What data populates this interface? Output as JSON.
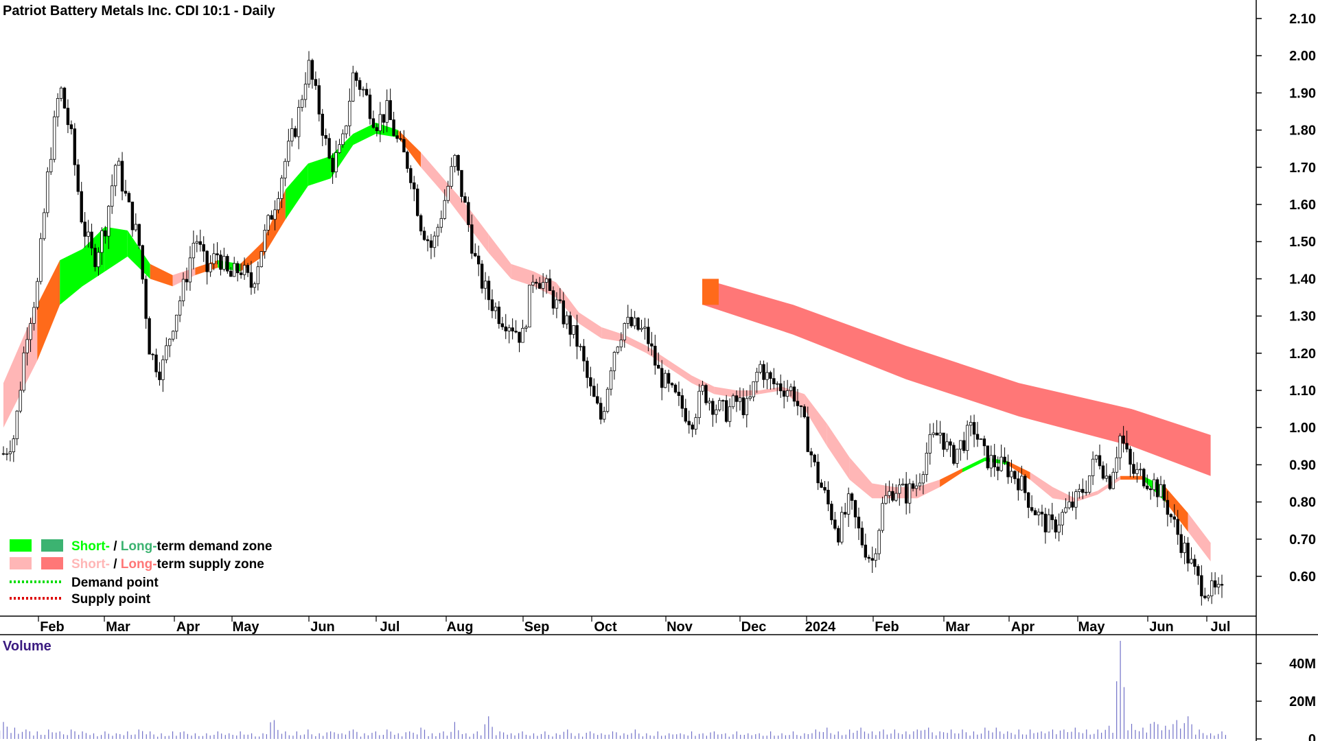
{
  "chart_data": {
    "type": "candlestick",
    "title": "Patriot Battery Metals Inc. CDI 10:1 - Daily",
    "x_labels": [
      "Feb",
      "Mar",
      "Apr",
      "May",
      "Jun",
      "Jul",
      "Aug",
      "Sep",
      "Oct",
      "Nov",
      "Dec",
      "2024",
      "Feb",
      "Mar",
      "Apr",
      "May",
      "Jun",
      "Jul"
    ],
    "y_ticks": [
      "2.10",
      "2.00",
      "1.90",
      "1.80",
      "1.70",
      "1.60",
      "1.50",
      "1.40",
      "1.30",
      "1.20",
      "1.10",
      "1.00",
      "0.90",
      "0.80",
      "0.70",
      "0.60"
    ],
    "ylim": [
      0.53,
      2.12
    ],
    "price_path": [
      [
        0,
        0.93
      ],
      [
        1,
        0.98
      ],
      [
        2,
        1.25
      ],
      [
        3,
        1.38
      ],
      [
        4,
        1.7
      ],
      [
        5,
        1.92
      ],
      [
        6,
        1.78
      ],
      [
        7,
        1.55
      ],
      [
        8,
        1.45
      ],
      [
        9,
        1.54
      ],
      [
        10,
        1.72
      ],
      [
        11,
        1.6
      ],
      [
        12,
        1.5
      ],
      [
        13,
        1.2
      ],
      [
        14,
        1.15
      ],
      [
        15,
        1.28
      ],
      [
        16,
        1.38
      ],
      [
        17,
        1.52
      ],
      [
        18,
        1.42
      ],
      [
        19,
        1.47
      ],
      [
        20,
        1.4
      ],
      [
        21,
        1.43
      ],
      [
        22,
        1.38
      ],
      [
        23,
        1.5
      ],
      [
        24,
        1.6
      ],
      [
        25,
        1.72
      ],
      [
        26,
        1.82
      ],
      [
        27,
        1.98
      ],
      [
        28,
        1.85
      ],
      [
        29,
        1.7
      ],
      [
        30,
        1.75
      ],
      [
        31,
        1.95
      ],
      [
        32,
        1.9
      ],
      [
        33,
        1.82
      ],
      [
        34,
        1.85
      ],
      [
        35,
        1.76
      ],
      [
        36,
        1.7
      ],
      [
        37,
        1.55
      ],
      [
        38,
        1.48
      ],
      [
        39,
        1.6
      ],
      [
        40,
        1.72
      ],
      [
        41,
        1.58
      ],
      [
        42,
        1.42
      ],
      [
        43,
        1.35
      ],
      [
        44,
        1.3
      ],
      [
        45,
        1.28
      ],
      [
        46,
        1.24
      ],
      [
        47,
        1.42
      ],
      [
        48,
        1.38
      ],
      [
        49,
        1.33
      ],
      [
        50,
        1.28
      ],
      [
        51,
        1.22
      ],
      [
        52,
        1.1
      ],
      [
        53,
        1.02
      ],
      [
        54,
        1.2
      ],
      [
        55,
        1.28
      ],
      [
        56,
        1.27
      ],
      [
        57,
        1.25
      ],
      [
        58,
        1.15
      ],
      [
        59,
        1.1
      ],
      [
        60,
        1.06
      ],
      [
        61,
        1.02
      ],
      [
        62,
        1.1
      ],
      [
        63,
        1.06
      ],
      [
        64,
        1.04
      ],
      [
        65,
        1.07
      ],
      [
        66,
        1.05
      ],
      [
        67,
        1.17
      ],
      [
        68,
        1.12
      ],
      [
        69,
        1.11
      ],
      [
        70,
        1.1
      ],
      [
        71,
        1.0
      ],
      [
        72,
        0.88
      ],
      [
        73,
        0.8
      ],
      [
        74,
        0.72
      ],
      [
        75,
        0.8
      ],
      [
        76,
        0.7
      ],
      [
        77,
        0.64
      ],
      [
        78,
        0.8
      ],
      [
        79,
        0.84
      ],
      [
        80,
        0.82
      ],
      [
        81,
        0.85
      ],
      [
        82,
        0.95
      ],
      [
        83,
        0.99
      ],
      [
        84,
        0.92
      ],
      [
        85,
        0.96
      ],
      [
        86,
        1.0
      ],
      [
        87,
        0.92
      ],
      [
        88,
        0.9
      ],
      [
        89,
        0.89
      ],
      [
        90,
        0.86
      ],
      [
        91,
        0.8
      ],
      [
        92,
        0.75
      ],
      [
        93,
        0.73
      ],
      [
        94,
        0.77
      ],
      [
        95,
        0.8
      ],
      [
        96,
        0.85
      ],
      [
        97,
        0.93
      ],
      [
        98,
        0.85
      ],
      [
        99,
        0.98
      ],
      [
        100,
        0.88
      ],
      [
        101,
        0.87
      ],
      [
        102,
        0.85
      ],
      [
        103,
        0.8
      ],
      [
        104,
        0.72
      ],
      [
        105,
        0.65
      ],
      [
        106,
        0.58
      ],
      [
        107,
        0.56
      ],
      [
        108,
        0.55
      ]
    ],
    "zones": {
      "short_term": [
        [
          0,
          1.0,
          1.12
        ],
        [
          3,
          1.18,
          1.33
        ],
        [
          5,
          1.33,
          1.45
        ],
        [
          7,
          1.38,
          1.48
        ],
        [
          9,
          1.42,
          1.54
        ],
        [
          11,
          1.46,
          1.53
        ],
        [
          13,
          1.4,
          1.44
        ],
        [
          15,
          1.38,
          1.41
        ],
        [
          17,
          1.41,
          1.43
        ],
        [
          19,
          1.43,
          1.45
        ],
        [
          21,
          1.42,
          1.44
        ],
        [
          23,
          1.46,
          1.5
        ],
        [
          25,
          1.56,
          1.64
        ],
        [
          27,
          1.65,
          1.71
        ],
        [
          29,
          1.67,
          1.73
        ],
        [
          31,
          1.76,
          1.79
        ],
        [
          33,
          1.79,
          1.82
        ],
        [
          35,
          1.78,
          1.8
        ],
        [
          37,
          1.7,
          1.74
        ],
        [
          39,
          1.63,
          1.67
        ],
        [
          41,
          1.55,
          1.6
        ],
        [
          43,
          1.47,
          1.52
        ],
        [
          45,
          1.4,
          1.44
        ],
        [
          47,
          1.38,
          1.42
        ],
        [
          49,
          1.35,
          1.39
        ],
        [
          51,
          1.28,
          1.31
        ],
        [
          53,
          1.24,
          1.27
        ],
        [
          55,
          1.23,
          1.25
        ],
        [
          57,
          1.2,
          1.22
        ],
        [
          59,
          1.16,
          1.18
        ],
        [
          61,
          1.12,
          1.14
        ],
        [
          63,
          1.09,
          1.11
        ],
        [
          65,
          1.08,
          1.1
        ],
        [
          67,
          1.09,
          1.1
        ],
        [
          69,
          1.1,
          1.11
        ],
        [
          71,
          1.05,
          1.09
        ],
        [
          73,
          0.95,
          1.01
        ],
        [
          75,
          0.86,
          0.92
        ],
        [
          77,
          0.81,
          0.85
        ],
        [
          79,
          0.81,
          0.84
        ],
        [
          81,
          0.81,
          0.84
        ],
        [
          83,
          0.84,
          0.86
        ],
        [
          85,
          0.88,
          0.89
        ],
        [
          87,
          0.91,
          0.92
        ],
        [
          89,
          0.9,
          0.91
        ],
        [
          91,
          0.86,
          0.88
        ],
        [
          93,
          0.81,
          0.84
        ],
        [
          95,
          0.8,
          0.81
        ],
        [
          97,
          0.82,
          0.83
        ],
        [
          99,
          0.86,
          0.87
        ],
        [
          101,
          0.86,
          0.87
        ],
        [
          103,
          0.8,
          0.84
        ],
        [
          105,
          0.72,
          0.77
        ],
        [
          107,
          0.64,
          0.69
        ]
      ],
      "short_term_kind": [
        "supply",
        "demand",
        "demand",
        "demand",
        "demand",
        "demand",
        "supply",
        "supply",
        "demand",
        "demand",
        "supply",
        "demand",
        "demand",
        "demand",
        "demand",
        "demand",
        "demand",
        "supply",
        "supply",
        "supply",
        "supply",
        "supply",
        "supply",
        "supply",
        "supply",
        "supply",
        "supply",
        "supply",
        "supply",
        "supply",
        "supply",
        "supply",
        "supply",
        "supply",
        "supply",
        "supply",
        "supply",
        "supply",
        "supply",
        "supply",
        "supply",
        "demand",
        "demand",
        "demand",
        "supply",
        "supply",
        "supply",
        "supply",
        "supply",
        "demand",
        "demand",
        "supply",
        "supply",
        "supply"
      ],
      "long_term": [
        [
          62,
          1.33,
          1.4
        ],
        [
          70,
          1.25,
          1.33
        ],
        [
          80,
          1.13,
          1.22
        ],
        [
          90,
          1.03,
          1.12
        ],
        [
          100,
          0.95,
          1.05
        ],
        [
          107,
          0.87,
          0.98
        ]
      ],
      "long_term_kind": "supply"
    },
    "volume": {
      "title": "Volume",
      "ticks": [
        "40M",
        "20M",
        "0"
      ],
      "ylim": [
        0,
        52
      ],
      "values": [
        9,
        6,
        5,
        4,
        5,
        4,
        5,
        4,
        3,
        4,
        3,
        4,
        5,
        4,
        3,
        4,
        4,
        3,
        3,
        4,
        3,
        4,
        3,
        3,
        10,
        4,
        4,
        5,
        3,
        4,
        3,
        5,
        3,
        4,
        5,
        3,
        4,
        6,
        3,
        4,
        9,
        3,
        4,
        12,
        4,
        3,
        4,
        3,
        4,
        3,
        5,
        3,
        4,
        3,
        4,
        3,
        5,
        3,
        4,
        3,
        3,
        4,
        3,
        4,
        3,
        4,
        3,
        3,
        4,
        3,
        4,
        3,
        5,
        6,
        4,
        5,
        6,
        4,
        5,
        5,
        4,
        5,
        6,
        4,
        5,
        5,
        4,
        6,
        6,
        4,
        5,
        5,
        4,
        5,
        5,
        6,
        5,
        5,
        7,
        52,
        8,
        6,
        9,
        7,
        10,
        12,
        5,
        3,
        4
      ]
    },
    "legend": [
      {
        "label_a": "Short-",
        "sep": " / ",
        "label_b": "Long-",
        "rest": "term demand zone",
        "color_a": "#00ff00",
        "color_b": "#3cb371"
      },
      {
        "label_a": "Short-",
        "sep": " / ",
        "label_b": "Long-",
        "rest": "term supply zone",
        "color_a": "#ffb6b6",
        "color_b": "#ff7777"
      },
      {
        "label": "Demand point",
        "color": "#00dd00"
      },
      {
        "label": "Supply point",
        "color": "#dd0000"
      }
    ],
    "colors": {
      "demand_short": "#00ff00",
      "demand_long": "#3cb371",
      "supply_short": "#ffb6b6",
      "supply_long": "#ff7777",
      "transition": "#ff6a1a",
      "candle": "#000000",
      "volume": "#7070c8"
    }
  }
}
